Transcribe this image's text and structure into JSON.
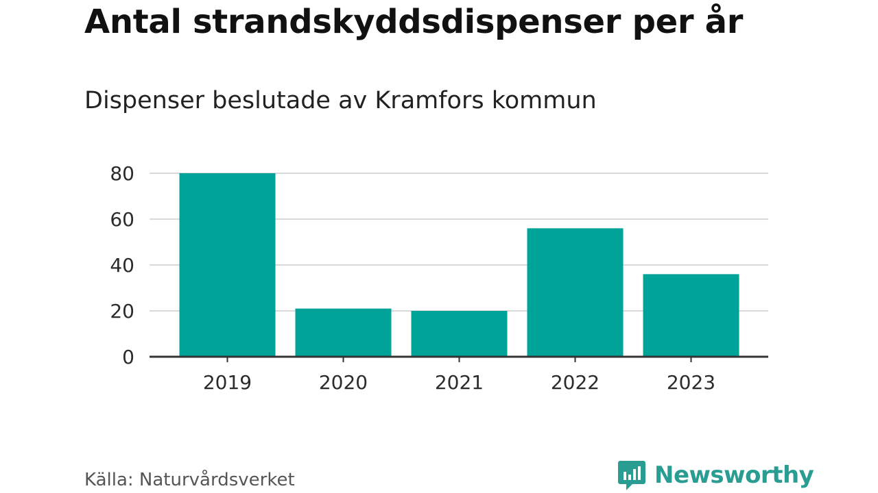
{
  "title": "Antal strandskyddsdispenser per år",
  "subtitle": "Dispenser beslutade av Kramfors kommun",
  "source": "Källa: Naturvårdsverket",
  "brand": {
    "name": "Newsworthy",
    "color": "#2a9d93",
    "icon": "newsworthy-logo-icon"
  },
  "colors": {
    "bar": "#00a398",
    "grid": "#d9d9d9",
    "axis": "#333333"
  },
  "chart_data": {
    "type": "bar",
    "categories": [
      "2019",
      "2020",
      "2021",
      "2022",
      "2023"
    ],
    "values": [
      80,
      21,
      20,
      56,
      36
    ],
    "title": "Antal strandskyddsdispenser per år",
    "subtitle": "Dispenser beslutade av Kramfors kommun",
    "xlabel": "",
    "ylabel": "",
    "ylim": [
      0,
      80
    ],
    "yticks": [
      0,
      20,
      40,
      60,
      80
    ],
    "grid": true,
    "legend": "none"
  }
}
